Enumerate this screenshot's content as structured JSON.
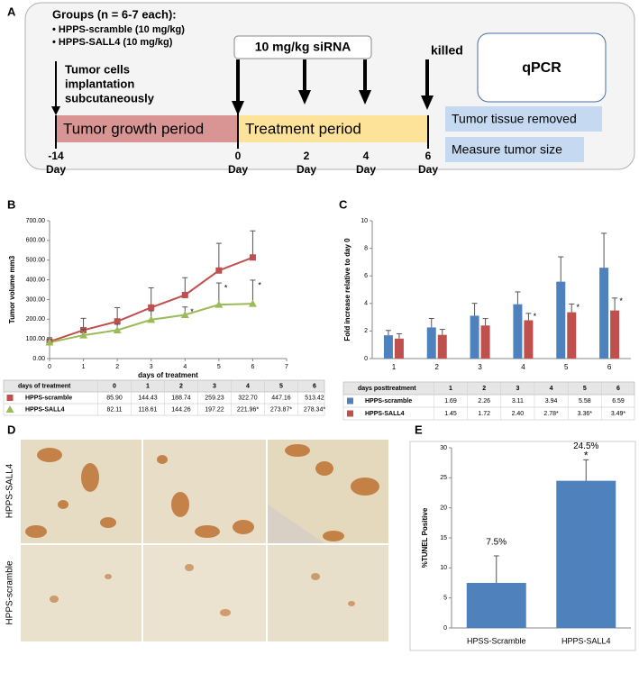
{
  "panels": [
    "A",
    "B",
    "C",
    "D",
    "E"
  ],
  "timeline": {
    "groups_title": "Groups (n = 6-7 each):",
    "groups": [
      "• HPPS-scramble  (10 mg/kg)",
      "• HPPS-SALL4 (10 mg/kg)"
    ],
    "treatment_label": "10 mg/kg siRNA",
    "end_label": "killed",
    "start_label_lines": [
      "Tumor cells",
      "implantation",
      "subcutaneously"
    ],
    "periods": [
      "Tumor growth period",
      "Treatment period"
    ],
    "assay": "qPCR",
    "endpoints": [
      "Tumor tissue removed",
      "Measure tumor size"
    ],
    "days": [
      "-14",
      "0",
      "2",
      "4",
      "6"
    ],
    "day_unit": "Day"
  },
  "micrographs": {
    "row_labels": [
      "HPPS-SALL4",
      "HPPS-scramble"
    ]
  },
  "chart_data": [
    {
      "type": "line",
      "y_label": "Tumor volume mm3",
      "x_label": "days of treatment",
      "x": [
        0,
        1,
        2,
        3,
        4,
        5,
        6
      ],
      "xlim": [
        0,
        7
      ],
      "xticks": [
        0,
        1,
        2,
        3,
        4,
        5,
        6,
        7
      ],
      "ylim": [
        0,
        700
      ],
      "yticks": [
        {
          "value": 0,
          "label": "0.00"
        },
        {
          "value": 100,
          "label": "100.00"
        },
        {
          "value": 200,
          "label": "200.00"
        },
        {
          "value": 300,
          "label": "300.00"
        },
        {
          "value": 400,
          "label": "400.00"
        },
        {
          "value": 500,
          "label": "500.00"
        },
        {
          "value": 600,
          "label": "600.00"
        },
        {
          "value": 700,
          "label": "700.00"
        }
      ],
      "table": {
        "header": "days of treatment"
      },
      "series": [
        {
          "name": "HPPS-scramble",
          "color": "#c0504d",
          "marker": "square",
          "values": [
            85.9,
            144.43,
            188.74,
            259.23,
            322.7,
            447.16,
            513.42
          ],
          "value_labels": [
            "85.90",
            "144.43",
            "188.74",
            "259.23",
            "322.70",
            "447.16",
            "513.42"
          ],
          "errors": [
            20,
            60,
            70,
            100,
            88,
            138,
            135
          ],
          "annotations": [
            null,
            null,
            null,
            null,
            null,
            null,
            null
          ]
        },
        {
          "name": "HPPS-SALL4",
          "color": "#9bbb59",
          "marker": "triangle",
          "values": [
            82.11,
            118.61,
            144.26,
            197.22,
            221.96,
            273.87,
            278.34
          ],
          "value_labels": [
            "82.11",
            "118.61",
            "144.26",
            "197.22",
            "221.96*",
            "273.87*",
            "278.34*"
          ],
          "errors": [
            15,
            30,
            30,
            45,
            40,
            110,
            120
          ],
          "annotations": [
            null,
            null,
            null,
            null,
            "*",
            "*",
            "*"
          ]
        }
      ]
    },
    {
      "type": "bar",
      "y_label": "Fold increase relative to day 0",
      "categories": [
        "1",
        "2",
        "3",
        "4",
        "5",
        "6"
      ],
      "ylim": [
        0,
        10
      ],
      "yticks": [
        0,
        2,
        4,
        6,
        8,
        10
      ],
      "table": {
        "header": "days posttreatment"
      },
      "series": [
        {
          "name": "HPPS-scramble",
          "color": "#4f81bd",
          "values": [
            1.69,
            2.26,
            3.11,
            3.94,
            5.58,
            6.59
          ],
          "value_labels": [
            "1.69",
            "2.26",
            "3.11",
            "3.94",
            "5.58",
            "6.59"
          ],
          "errors": [
            0.35,
            0.65,
            0.9,
            0.9,
            1.8,
            2.5
          ],
          "annotations": [
            null,
            null,
            null,
            null,
            null,
            null
          ]
        },
        {
          "name": "HPPS-SALL4",
          "color": "#c0504d",
          "values": [
            1.45,
            1.72,
            2.4,
            2.78,
            3.36,
            3.49
          ],
          "value_labels": [
            "1.45",
            "1.72",
            "2.40",
            "2.78*",
            "3.36*",
            "3.49*"
          ],
          "errors": [
            0.35,
            0.4,
            0.5,
            0.5,
            0.6,
            0.9
          ],
          "annotations": [
            null,
            null,
            null,
            "*",
            "*",
            "*"
          ]
        }
      ]
    },
    {
      "type": "bar",
      "y_label": "%TUNEL Positive",
      "categories": [
        "HPSS-Scramble",
        "HPPS-SALL4"
      ],
      "ylim": [
        0,
        30
      ],
      "yticks": [
        0,
        5,
        10,
        15,
        20,
        25,
        30
      ],
      "series": [
        {
          "color": "#4f81bd",
          "values": [
            7.5,
            24.5
          ],
          "value_labels": [
            "7.5%",
            "24.5%"
          ],
          "errors": [
            4.5,
            3.5
          ],
          "annotations": [
            null,
            "*"
          ]
        }
      ]
    }
  ]
}
